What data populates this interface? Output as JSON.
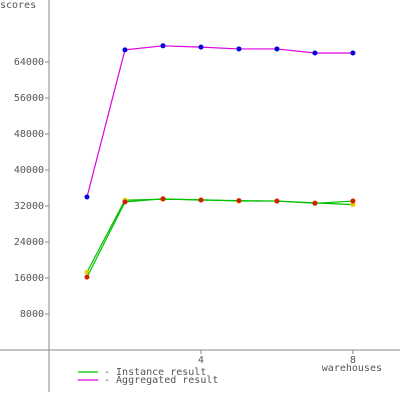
{
  "chart_data": {
    "type": "line",
    "y_label": "scores",
    "x_label": "warehouses",
    "x": [
      1,
      2,
      3,
      4,
      5,
      6,
      7,
      8
    ],
    "series": [
      {
        "name": "- Instance result",
        "color": "#00c000",
        "marker_colors": [
          "#e8d000",
          "#d02000"
        ],
        "values": [
          [
            17300,
            33300,
            33500,
            33400,
            33100,
            33100,
            32700,
            32300
          ],
          [
            16200,
            32900,
            33600,
            33300,
            33200,
            33100,
            32600,
            33100
          ]
        ]
      },
      {
        "name": "- Aggregated result",
        "color": "#e000e0",
        "marker_color": "#0000e0",
        "values": [
          34000,
          66700,
          67600,
          67300,
          66900,
          66900,
          66000,
          66000
        ]
      }
    ],
    "xlim": [
      -1.29,
      9.24
    ],
    "ylim": [
      -9333,
      77778
    ],
    "xticks": [
      4,
      8
    ],
    "yticks": [
      8000,
      16000,
      24000,
      32000,
      40000,
      48000,
      56000,
      64000
    ]
  }
}
